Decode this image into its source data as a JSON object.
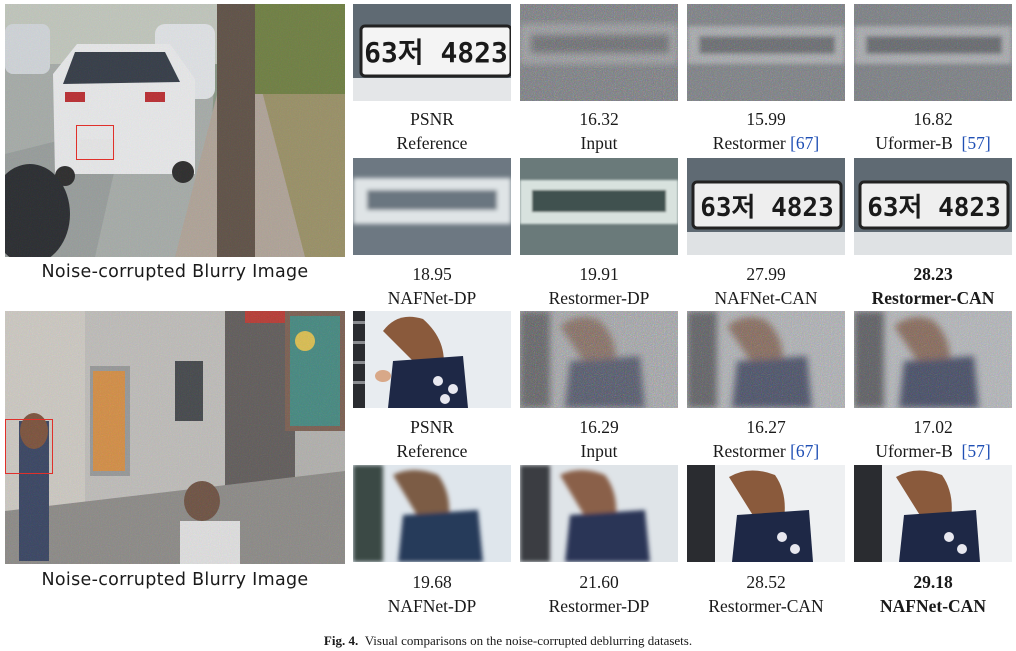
{
  "sections": [
    {
      "big_caption": "Noise-corrupted Blurry Image",
      "plate_text": "63저 4823",
      "rows": [
        [
          {
            "value": "PSNR",
            "method": "Reference",
            "ref": "",
            "bold": false
          },
          {
            "value": "16.32",
            "method": "Input",
            "ref": "",
            "bold": false
          },
          {
            "value": "15.99",
            "method": "Restormer ",
            "ref": "[67]",
            "bold": false
          },
          {
            "value": "16.82",
            "method": "Uformer-B ",
            "ref": "[57]",
            "bold": false
          }
        ],
        [
          {
            "value": "18.95",
            "method": "NAFNet-DP",
            "ref": "",
            "bold": false
          },
          {
            "value": "19.91",
            "method": "Restormer-DP",
            "ref": "",
            "bold": false
          },
          {
            "value": "27.99",
            "method": "NAFNet-CAN",
            "ref": "",
            "bold": false
          },
          {
            "value": "28.23",
            "method": "Restormer-CAN",
            "ref": "",
            "bold": true
          }
        ]
      ]
    },
    {
      "big_caption": "Noise-corrupted Blurry Image",
      "rows": [
        [
          {
            "value": "PSNR",
            "method": "Reference",
            "ref": "",
            "bold": false
          },
          {
            "value": "16.29",
            "method": "Input",
            "ref": "",
            "bold": false
          },
          {
            "value": "16.27",
            "method": "Restormer ",
            "ref": "[67]",
            "bold": false
          },
          {
            "value": "17.02",
            "method": "Uformer-B ",
            "ref": "[57]",
            "bold": false
          }
        ],
        [
          {
            "value": "19.68",
            "method": "NAFNet-DP",
            "ref": "",
            "bold": false
          },
          {
            "value": "21.60",
            "method": "Restormer-DP",
            "ref": "",
            "bold": false
          },
          {
            "value": "28.52",
            "method": "Restormer-CAN",
            "ref": "",
            "bold": false
          },
          {
            "value": "29.18",
            "method": "NAFNet-CAN",
            "ref": "",
            "bold": true
          }
        ]
      ]
    }
  ],
  "figure_caption": {
    "label": "Fig. 4.",
    "text": "Visual comparisons on the noise-corrupted deblurring datasets."
  },
  "colors": {
    "roi_box": "#e0302a",
    "reference_link": "#1f4fb4"
  }
}
